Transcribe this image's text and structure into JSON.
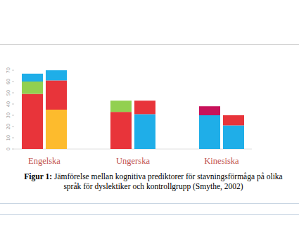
{
  "chart_data": {
    "type": "bar",
    "stacked": true,
    "figure_label": "Figur 1:",
    "title": "Jämförelse mellan kognitiva prediktorer för stavningsförmåga på olika språk för dyslektiker och kontrollgrupp (Smythe, 2002)",
    "categories": [
      "Engelska",
      null,
      "Ungerska",
      null,
      "Kinesiska",
      null
    ],
    "series": [
      {
        "values": [
          49,
          35,
          33,
          31,
          30,
          21
        ],
        "colors": [
          "#e8343a",
          "#fdbb2d",
          "#e8343a",
          "#1faee8",
          "#1faee8",
          "#1faee8"
        ]
      },
      {
        "values": [
          11,
          26,
          10,
          12,
          8,
          9
        ],
        "colors": [
          "#92d050",
          "#e8343a",
          "#92d050",
          "#e8343a",
          "#c8125a",
          "#e8343a"
        ]
      },
      {
        "values": [
          7,
          9,
          null,
          null,
          null,
          null
        ],
        "colors": [
          "#1faee8",
          "#1faee8",
          null,
          null,
          null,
          null
        ]
      }
    ],
    "ylim": [
      0,
      70
    ],
    "yticks": [
      0,
      10,
      20,
      30,
      40,
      50,
      60,
      70
    ],
    "grid": false
  }
}
